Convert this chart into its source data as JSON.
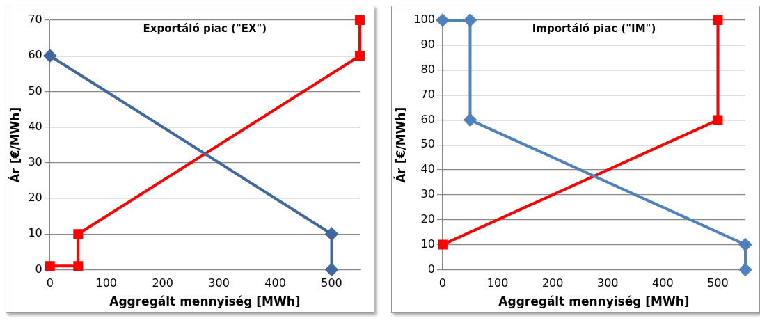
{
  "chart_data": [
    {
      "type": "line",
      "title": "Exportáló piac (\"EX\")",
      "xlabel": "Aggregált mennyiség [MWh]",
      "ylabel": "Ár [€/MWh]",
      "xlim": [
        0,
        550
      ],
      "xticks": [
        0,
        100,
        200,
        300,
        400,
        500
      ],
      "ylim": [
        0,
        70
      ],
      "yticks": [
        0,
        10,
        20,
        30,
        40,
        50,
        60,
        70
      ],
      "grid": "y",
      "series": [
        {
          "color": "#41689c",
          "marker": "diamond",
          "x": [
            0,
            500,
            500
          ],
          "values": [
            60,
            10,
            0
          ]
        },
        {
          "color": "#ff0000",
          "marker": "square",
          "x": [
            0,
            50,
            50,
            550,
            550
          ],
          "values": [
            1,
            1,
            10,
            60,
            70
          ]
        }
      ]
    },
    {
      "type": "line",
      "title": "Importáló piac (\"IM\")",
      "xlabel": "Aggregált mennyiség [MWh]",
      "ylabel": "Ár [€/MWh]",
      "xlim": [
        0,
        550
      ],
      "xticks": [
        0,
        100,
        200,
        300,
        400,
        500
      ],
      "ylim": [
        0,
        100
      ],
      "yticks": [
        0,
        10,
        20,
        30,
        40,
        50,
        60,
        70,
        80,
        90,
        100
      ],
      "grid": "y",
      "series": [
        {
          "color": "#4f81bd",
          "marker": "diamond",
          "x": [
            0,
            50,
            50,
            550,
            550
          ],
          "values": [
            100,
            100,
            60,
            10,
            0
          ]
        },
        {
          "color": "#ff0000",
          "marker": "square",
          "x": [
            0,
            500,
            500
          ],
          "values": [
            10,
            60,
            100
          ]
        }
      ]
    }
  ]
}
